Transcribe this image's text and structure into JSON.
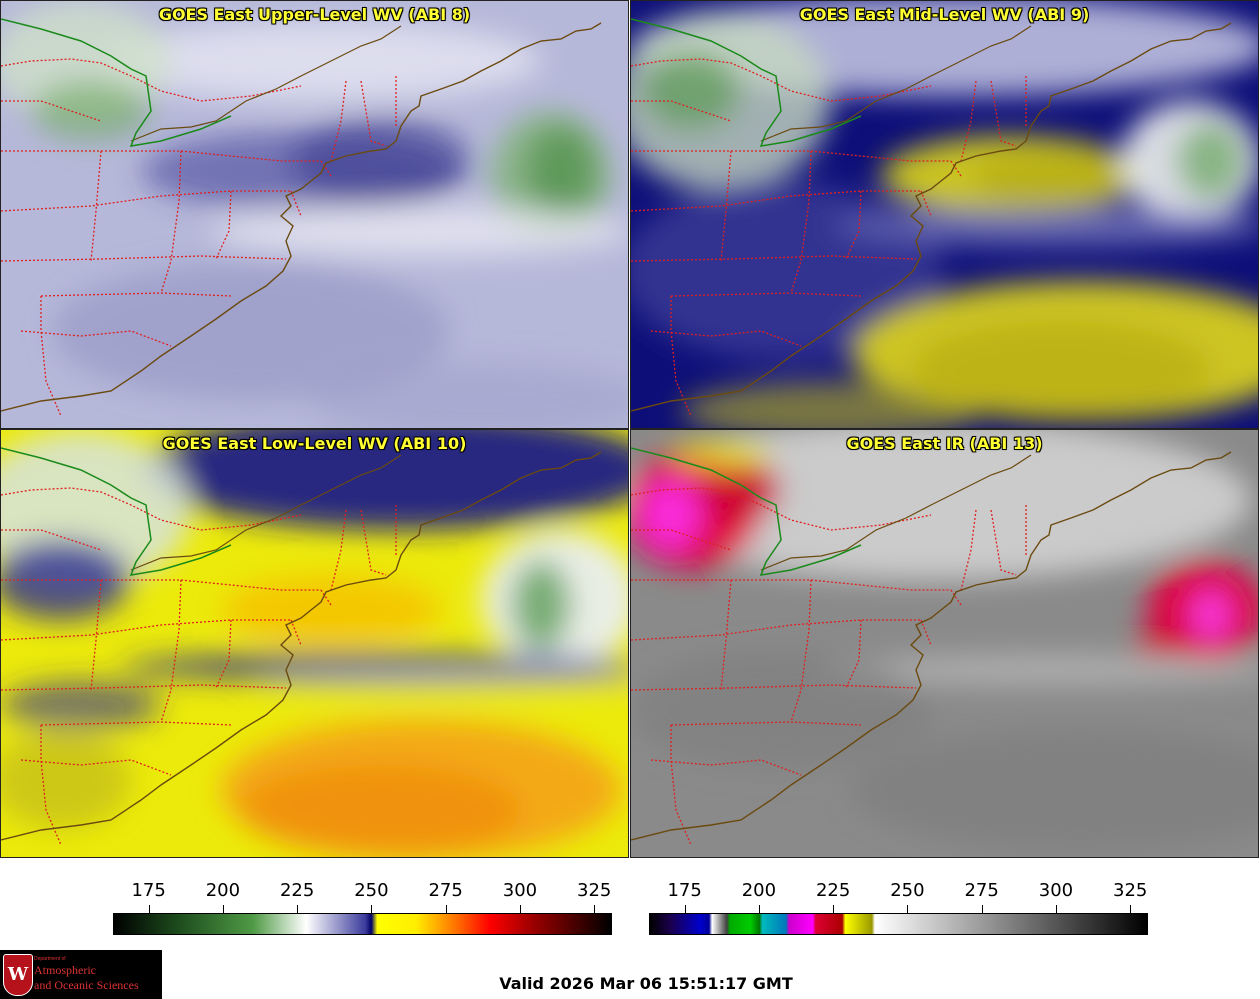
{
  "panels": [
    {
      "title": "GOES East Upper-Level WV (ABI 8)",
      "style": "upper"
    },
    {
      "title": "GOES East Mid-Level WV (ABI 9)",
      "style": "mid"
    },
    {
      "title": "GOES East Low-Level WV (ABI 10)",
      "style": "low"
    },
    {
      "title": "GOES East IR (ABI 13)",
      "style": "ir"
    }
  ],
  "colorbars": {
    "wv": {
      "ticks": [
        "175",
        "200",
        "225",
        "250",
        "275",
        "300",
        "325"
      ],
      "range": [
        163,
        331
      ],
      "stops": [
        {
          "v": 163,
          "c": "#000000"
        },
        {
          "v": 185,
          "c": "#1e4d1e"
        },
        {
          "v": 210,
          "c": "#4f9a45"
        },
        {
          "v": 228,
          "c": "#ffffff"
        },
        {
          "v": 248,
          "c": "#3b3b9c"
        },
        {
          "v": 250,
          "c": "#000066"
        },
        {
          "v": 252,
          "c": "#ffff00"
        },
        {
          "v": 265,
          "c": "#ffee00"
        },
        {
          "v": 278,
          "c": "#ff7700"
        },
        {
          "v": 290,
          "c": "#ff0000"
        },
        {
          "v": 305,
          "c": "#990000"
        },
        {
          "v": 331,
          "c": "#000000"
        }
      ]
    },
    "ir": {
      "ticks": [
        "175",
        "200",
        "225",
        "250",
        "275",
        "300",
        "325"
      ],
      "range": [
        163,
        331
      ],
      "stops": [
        {
          "v": 163,
          "c": "#000000"
        },
        {
          "v": 170,
          "c": "#1a004d"
        },
        {
          "v": 180,
          "c": "#0000cc"
        },
        {
          "v": 183,
          "c": "#000099"
        },
        {
          "v": 184,
          "c": "#ffffff"
        },
        {
          "v": 189,
          "c": "#404040"
        },
        {
          "v": 190,
          "c": "#00aa00"
        },
        {
          "v": 197,
          "c": "#00cc00"
        },
        {
          "v": 200,
          "c": "#007700"
        },
        {
          "v": 201,
          "c": "#00bbbb"
        },
        {
          "v": 209,
          "c": "#0077bb"
        },
        {
          "v": 210,
          "c": "#cc00cc"
        },
        {
          "v": 218,
          "c": "#ff00ff"
        },
        {
          "v": 219,
          "c": "#dd0033"
        },
        {
          "v": 228,
          "c": "#aa0000"
        },
        {
          "v": 229,
          "c": "#ffff00"
        },
        {
          "v": 238,
          "c": "#999900"
        },
        {
          "v": 239,
          "c": "#ffffff"
        },
        {
          "v": 331,
          "c": "#000000"
        }
      ]
    }
  },
  "footer": {
    "valid_text": "Valid 2026 Mar 06 15:51:17 GMT"
  },
  "logo": {
    "department": "Department of",
    "line1": "Atmospheric",
    "line2": "and Oceanic Sciences",
    "crest_letter": "W"
  }
}
